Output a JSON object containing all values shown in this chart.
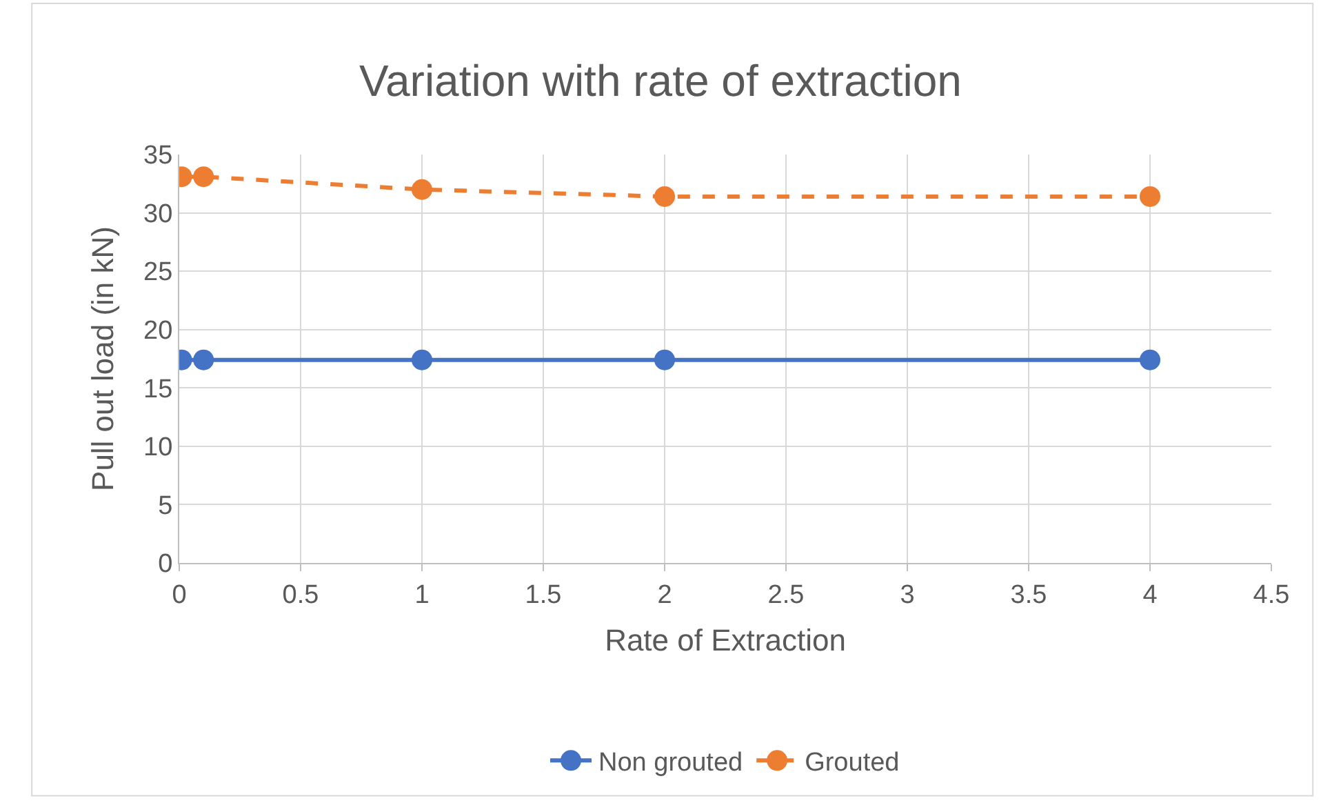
{
  "chart_data": {
    "type": "line",
    "title": "Variation with rate of extraction",
    "xlabel": "Rate of Extraction",
    "ylabel": "Pull out load (in kN)",
    "x": [
      0.01,
      0.1,
      1,
      2,
      4
    ],
    "series": [
      {
        "name": "Non grouted",
        "color": "#4472c4",
        "values": [
          17.4,
          17.4,
          17.4,
          17.4,
          17.4
        ],
        "line_style": "solid"
      },
      {
        "name": "Grouted",
        "color": "#ed7d31",
        "values": [
          33.1,
          33.1,
          32.0,
          31.4,
          31.4
        ],
        "line_style": "dashed"
      }
    ],
    "xlim": [
      0,
      4.5
    ],
    "xticks": [
      0,
      0.5,
      1,
      1.5,
      2,
      2.5,
      3,
      3.5,
      4,
      4.5
    ],
    "ylim": [
      0,
      35
    ],
    "yticks": [
      0,
      5,
      10,
      15,
      20,
      25,
      30,
      35
    ],
    "grid": true,
    "legend": "bottom",
    "marker": "circle"
  }
}
